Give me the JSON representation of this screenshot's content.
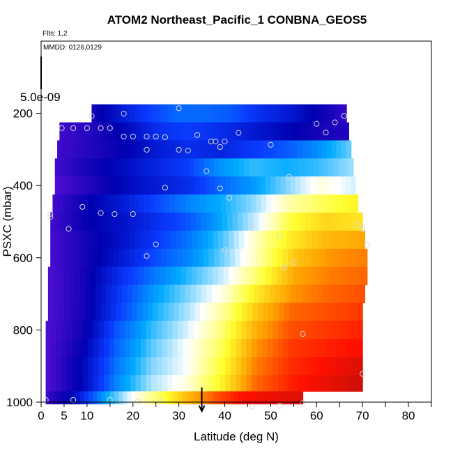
{
  "chart_data": {
    "type": "heatmap",
    "title": "ATOM2 Northeast_Pacific_1 CONBNA_GEOS5",
    "annotations": {
      "flights": "Flts: 1,2",
      "dates": "MMDD: 0126,0129"
    },
    "xlabel": "Latitude (deg N)",
    "ylabel": "PSXC (mbar)",
    "x_ticks": [
      "0",
      "5",
      "10",
      "20",
      "30",
      "40",
      "50",
      "60",
      "70",
      "80"
    ],
    "y_ticks": [
      "200",
      "400",
      "600",
      "800",
      "1000"
    ],
    "color_scale_label": "5.0e-09",
    "xlim": [
      0,
      85
    ],
    "ylim_pressure": [
      1000,
      0
    ],
    "x_minor_ticks": [
      15,
      25,
      35,
      45,
      55,
      65,
      75,
      85
    ],
    "grid": false,
    "colormap": [
      "#5a0fd8",
      "#0000b0",
      "#0a3cff",
      "#00aaff",
      "#ffffff",
      "#ffff30",
      "#ffa000",
      "#ff1000",
      "#a01010"
    ],
    "rows": [
      {
        "p": 200,
        "lat_min": 11.0,
        "lat_max": 66.5,
        "v": [
          0.1,
          0.18,
          0.25,
          0.3,
          0.3,
          0.28,
          0.22,
          0.18,
          0.12,
          0.06
        ]
      },
      {
        "p": 250,
        "lat_min": 4.0,
        "lat_max": 67.0,
        "v": [
          0.04,
          0.08,
          0.14,
          0.22,
          0.25,
          0.22,
          0.18,
          0.14,
          0.1,
          0.08
        ]
      },
      {
        "p": 300,
        "lat_min": 3.5,
        "lat_max": 67.5,
        "v": [
          0.04,
          0.08,
          0.12,
          0.18,
          0.22,
          0.2,
          0.24,
          0.28,
          0.34,
          0.42
        ]
      },
      {
        "p": 350,
        "lat_min": 3.0,
        "lat_max": 68.0,
        "v": [
          0.04,
          0.1,
          0.15,
          0.2,
          0.25,
          0.35,
          0.4,
          0.38,
          0.4,
          0.45
        ]
      },
      {
        "p": 400,
        "lat_min": 3.0,
        "lat_max": 68.5,
        "v": [
          0.02,
          0.08,
          0.14,
          0.18,
          0.22,
          0.3,
          0.36,
          0.44,
          0.52,
          0.48
        ]
      },
      {
        "p": 450,
        "lat_min": 2.5,
        "lat_max": 69.0,
        "v": [
          0.04,
          0.12,
          0.18,
          0.26,
          0.33,
          0.38,
          0.45,
          0.55,
          0.6,
          0.64
        ]
      },
      {
        "p": 500,
        "lat_min": 2.0,
        "lat_max": 70.0,
        "v": [
          0.04,
          0.12,
          0.16,
          0.22,
          0.28,
          0.38,
          0.48,
          0.62,
          0.68,
          0.66
        ]
      },
      {
        "p": 550,
        "lat_min": 2.0,
        "lat_max": 70.5,
        "v": [
          0.03,
          0.1,
          0.16,
          0.24,
          0.32,
          0.42,
          0.55,
          0.66,
          0.72,
          0.74
        ]
      },
      {
        "p": 600,
        "lat_min": 2.0,
        "lat_max": 71.0,
        "v": [
          0.03,
          0.1,
          0.18,
          0.27,
          0.34,
          0.44,
          0.56,
          0.7,
          0.76,
          0.78
        ]
      },
      {
        "p": 650,
        "lat_min": 1.5,
        "lat_max": 71.0,
        "v": [
          0.02,
          0.1,
          0.22,
          0.32,
          0.4,
          0.48,
          0.6,
          0.74,
          0.78,
          0.8
        ]
      },
      {
        "p": 700,
        "lat_min": 1.5,
        "lat_max": 70.5,
        "v": [
          0.02,
          0.1,
          0.24,
          0.36,
          0.44,
          0.52,
          0.66,
          0.76,
          0.8,
          0.82
        ]
      },
      {
        "p": 750,
        "lat_min": 1.5,
        "lat_max": 70.0,
        "v": [
          0.02,
          0.1,
          0.25,
          0.38,
          0.46,
          0.56,
          0.7,
          0.8,
          0.82,
          0.84
        ]
      },
      {
        "p": 800,
        "lat_min": 1.0,
        "lat_max": 70.0,
        "v": [
          0.02,
          0.1,
          0.28,
          0.4,
          0.48,
          0.58,
          0.73,
          0.82,
          0.84,
          0.86
        ]
      },
      {
        "p": 850,
        "lat_min": 1.0,
        "lat_max": 70.0,
        "v": [
          0.02,
          0.12,
          0.3,
          0.42,
          0.5,
          0.6,
          0.76,
          0.84,
          0.86,
          0.88
        ]
      },
      {
        "p": 900,
        "lat_min": 1.0,
        "lat_max": 70.0,
        "v": [
          0.02,
          0.14,
          0.32,
          0.44,
          0.5,
          0.62,
          0.78,
          0.85,
          0.88,
          0.92
        ]
      },
      {
        "p": 950,
        "lat_min": 1.0,
        "lat_max": 70.0,
        "v": [
          0.02,
          0.14,
          0.34,
          0.46,
          0.52,
          0.64,
          0.8,
          0.86,
          0.9,
          0.94
        ]
      },
      {
        "p": 990,
        "lat_min": 1.0,
        "lat_max": 57.0,
        "v": [
          0.05,
          0.16,
          0.36,
          0.5,
          0.6,
          0.72,
          0.82,
          0.88,
          0.9,
          0.92
        ]
      }
    ],
    "points": [
      [
        11,
        208
      ],
      [
        18,
        201
      ],
      [
        30,
        186
      ],
      [
        66,
        207
      ],
      [
        64,
        225
      ],
      [
        60,
        229
      ],
      [
        4.5,
        241
      ],
      [
        7,
        241
      ],
      [
        10,
        241
      ],
      [
        13,
        241
      ],
      [
        15,
        241
      ],
      [
        20,
        264
      ],
      [
        18,
        264
      ],
      [
        23,
        264
      ],
      [
        25,
        264
      ],
      [
        27,
        266
      ],
      [
        34,
        260
      ],
      [
        37,
        278
      ],
      [
        38,
        278
      ],
      [
        40,
        278
      ],
      [
        43,
        254
      ],
      [
        50,
        287
      ],
      [
        62,
        253
      ],
      [
        23,
        301
      ],
      [
        30,
        301
      ],
      [
        32,
        303
      ],
      [
        39,
        293
      ],
      [
        36,
        360
      ],
      [
        54,
        376
      ],
      [
        27,
        406
      ],
      [
        39,
        408
      ],
      [
        41,
        434
      ],
      [
        9,
        459
      ],
      [
        2,
        487
      ],
      [
        2,
        479
      ],
      [
        13,
        476
      ],
      [
        16,
        479
      ],
      [
        20,
        479
      ],
      [
        46,
        511
      ],
      [
        69,
        509
      ],
      [
        70,
        520
      ],
      [
        71,
        564
      ],
      [
        6,
        520
      ],
      [
        25,
        563
      ],
      [
        40,
        579
      ],
      [
        52,
        540
      ],
      [
        23,
        595
      ],
      [
        55,
        613
      ],
      [
        53,
        626
      ],
      [
        57,
        811
      ],
      [
        70,
        922
      ],
      [
        1,
        994
      ],
      [
        7,
        994
      ],
      [
        15,
        994
      ],
      [
        21,
        998
      ],
      [
        26,
        998
      ],
      [
        46,
        1013
      ],
      [
        52,
        1010
      ],
      [
        57,
        1003
      ]
    ],
    "marker": {
      "lat": 35,
      "p": 998
    }
  }
}
